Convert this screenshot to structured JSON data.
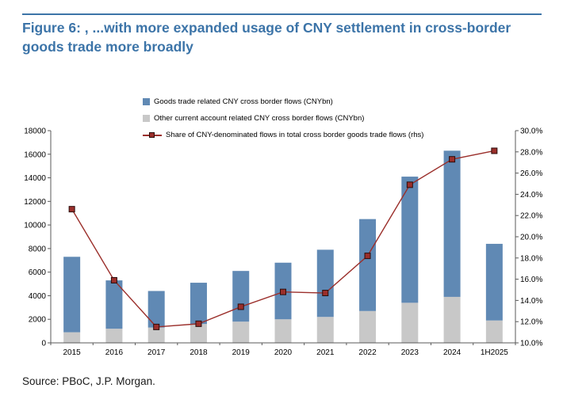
{
  "title": "Figure 6: , ...with more expanded usage of CNY settlement in cross-border goods trade more broadly",
  "source": "Source: PBoC, J.P. Morgan.",
  "colors": {
    "accent_blue": "#3c74a8",
    "bar_blue": "#6089b4",
    "bar_gray": "#c8c8c8",
    "line_red": "#9b2f2b",
    "axis_line": "#595959"
  },
  "chart_data": {
    "type": "bar",
    "subtype": "stacked-bars-with-line",
    "categories": [
      "2015",
      "2016",
      "2017",
      "2018",
      "2019",
      "2020",
      "2021",
      "2022",
      "2023",
      "2024",
      "1H2025"
    ],
    "series": [
      {
        "name": "Goods trade related CNY cross border flows (CNYbn)",
        "type": "bar-stack",
        "stack": 1,
        "color": "#6089b4",
        "values": [
          6400,
          4100,
          3100,
          3500,
          4300,
          4800,
          5700,
          7800,
          10700,
          12400,
          6500
        ]
      },
      {
        "name": "Other current account related CNY cross border flows (CNYbn)",
        "type": "bar-stack",
        "stack": 0,
        "color": "#c8c8c8",
        "values": [
          900,
          1200,
          1300,
          1600,
          1800,
          2000,
          2200,
          2700,
          3400,
          3900,
          1900
        ]
      },
      {
        "name": "Share of CNY-denominated flows in total cross border goods trade flows (rhs)",
        "type": "line",
        "axis": "right",
        "color": "#9b2f2b",
        "values": [
          22.6,
          15.9,
          11.5,
          11.8,
          13.4,
          14.8,
          14.7,
          18.2,
          24.9,
          27.3,
          28.1
        ]
      }
    ],
    "left_axis": {
      "min": 0,
      "max": 18000,
      "step": 2000
    },
    "right_axis": {
      "min": 10,
      "max": 30,
      "step": 2,
      "format": "percent1"
    },
    "grid": false,
    "legend_position": "top-left-inside"
  }
}
